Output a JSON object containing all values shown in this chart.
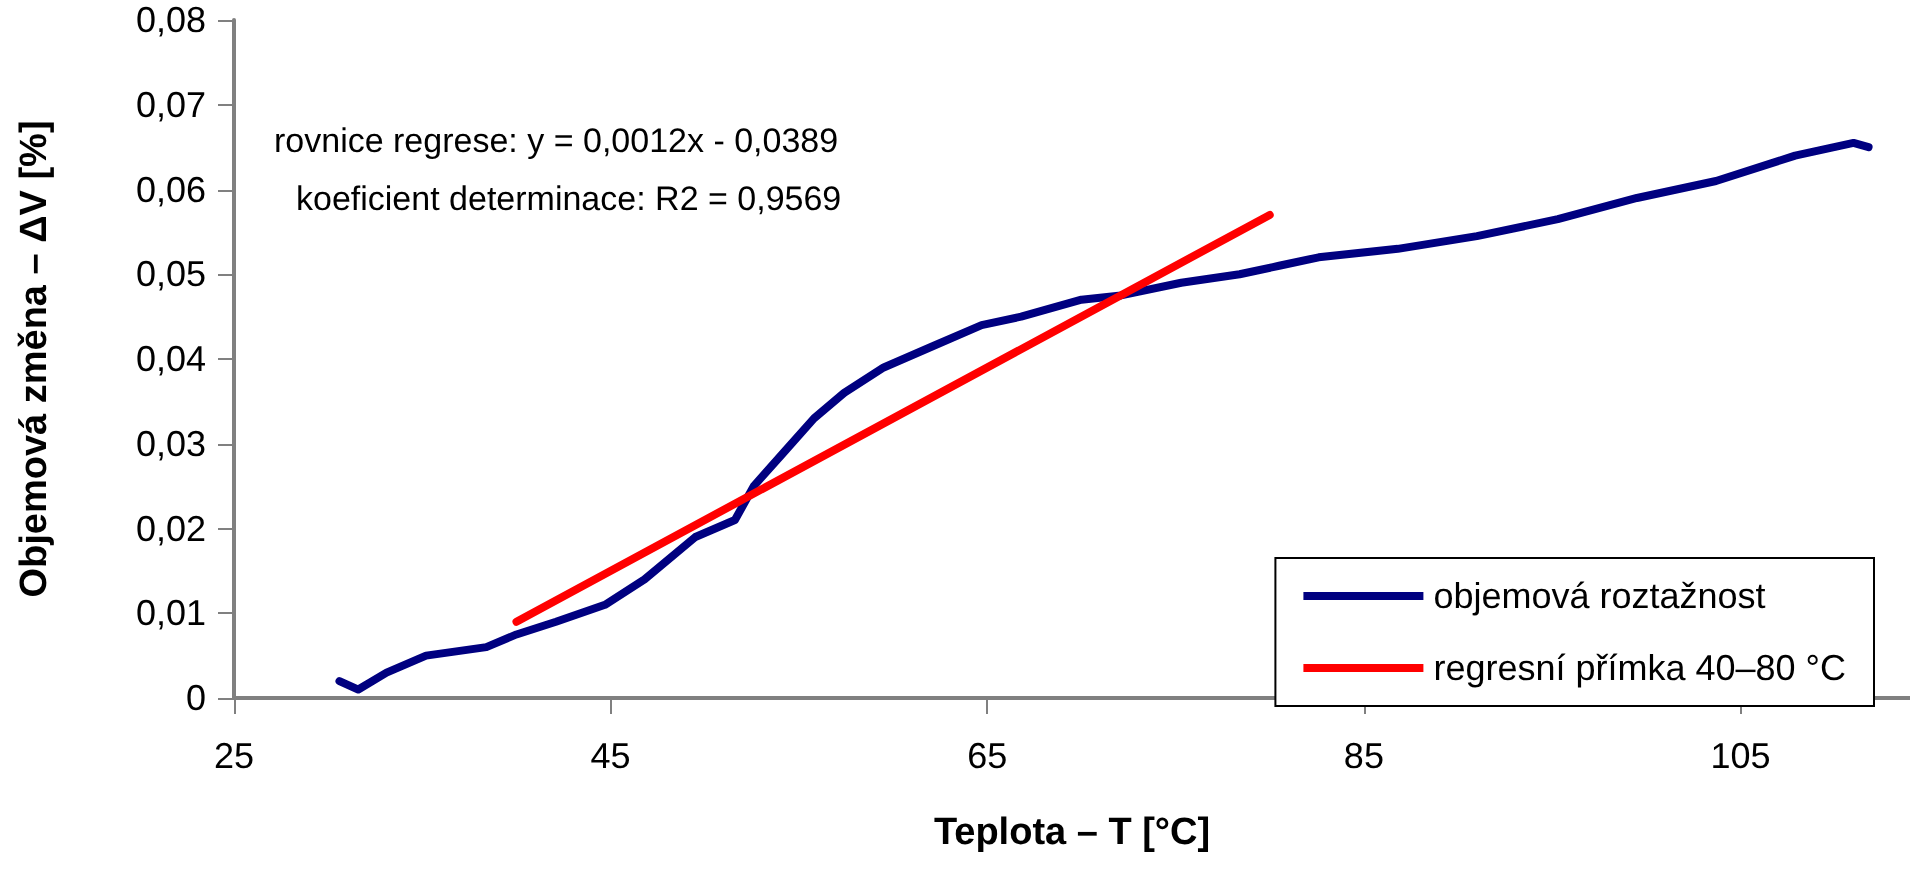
{
  "chart_data": {
    "type": "line",
    "xlabel": "Teplota – T [°C]",
    "ylabel": "Objemová změna – ΔV [%]",
    "annotations": [
      "rovnice regrese: y = 0,0012x - 0,0389",
      "koeficient determinace: R2 = 0,9569"
    ],
    "xlim": [
      25,
      114
    ],
    "xticks": [
      25,
      45,
      65,
      85,
      105
    ],
    "ylim": [
      0,
      0.08
    ],
    "yticks": [
      {
        "value": 0,
        "label": "0"
      },
      {
        "value": 0.01,
        "label": "0,01"
      },
      {
        "value": 0.02,
        "label": "0,02"
      },
      {
        "value": 0.03,
        "label": "0,03"
      },
      {
        "value": 0.04,
        "label": "0,04"
      },
      {
        "value": 0.05,
        "label": "0,05"
      },
      {
        "value": 0.06,
        "label": "0,06"
      },
      {
        "value": 0.07,
        "label": "0,07"
      },
      {
        "value": 0.08,
        "label": "0,08"
      }
    ],
    "grid": false,
    "legend": "bottom right",
    "marker": "none",
    "line_style": "solid",
    "series": [
      {
        "name": "objemová roztažnost",
        "color": "#000080",
        "x": [
          30.6,
          31.6,
          33.1,
          35.2,
          38.4,
          40.0,
          42.1,
          44.7,
          46.8,
          49.5,
          51.6,
          52.6,
          54.2,
          55.8,
          57.4,
          59.5,
          62.1,
          64.7,
          66.8,
          70.0,
          72.1,
          75.3,
          78.4,
          80.5,
          82.6,
          86.8,
          91.0,
          95.3,
          99.5,
          103.7,
          107.9,
          111.0,
          111.8
        ],
        "values": [
          0.002,
          0.001,
          0.003,
          0.005,
          0.006,
          0.0075,
          0.009,
          0.011,
          0.014,
          0.019,
          0.021,
          0.025,
          0.029,
          0.033,
          0.036,
          0.039,
          0.0415,
          0.044,
          0.045,
          0.047,
          0.0475,
          0.049,
          0.05,
          0.051,
          0.052,
          0.053,
          0.0545,
          0.0565,
          0.059,
          0.061,
          0.064,
          0.0655,
          0.065
        ]
      },
      {
        "name": "regresní přímka 40–80 °C",
        "color": "#ff0000",
        "x": [
          40,
          80
        ],
        "values": [
          0.009,
          0.057
        ]
      }
    ]
  }
}
